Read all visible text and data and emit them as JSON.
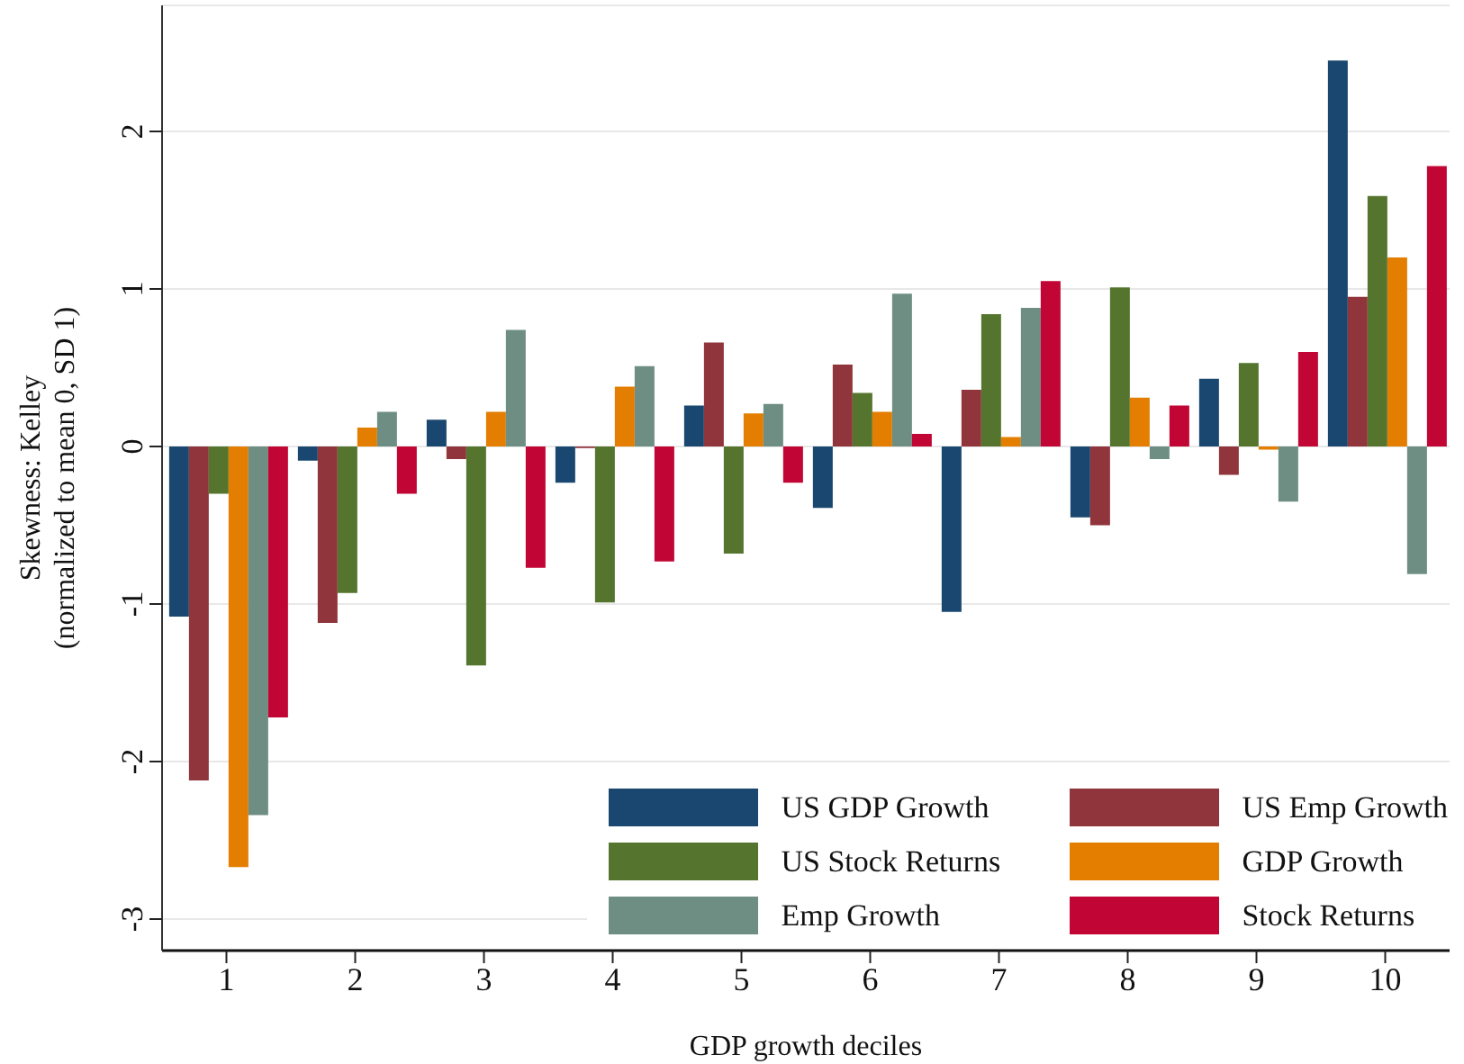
{
  "chart_data": {
    "type": "bar",
    "xlabel": "GDP growth deciles",
    "ylabel": "Skewness: Kelley\n(normalized to mean 0, SD 1)",
    "categories": [
      "1",
      "2",
      "3",
      "4",
      "5",
      "6",
      "7",
      "8",
      "9",
      "10"
    ],
    "series": [
      {
        "name": "US GDP Growth",
        "color": "#1a476f",
        "values": [
          -1.08,
          -0.09,
          0.17,
          -0.23,
          0.26,
          -0.39,
          -1.05,
          -0.45,
          0.43,
          2.45
        ]
      },
      {
        "name": "US Emp Growth",
        "color": "#90353b",
        "values": [
          -2.12,
          -1.12,
          -0.08,
          -0.01,
          0.66,
          0.52,
          0.36,
          -0.5,
          -0.18,
          0.95
        ]
      },
      {
        "name": "US Stock Returns",
        "color": "#55752f",
        "values": [
          -0.3,
          -0.93,
          -1.39,
          -0.99,
          -0.68,
          0.34,
          0.84,
          1.01,
          0.53,
          1.59
        ]
      },
      {
        "name": "GDP Growth",
        "color": "#e37e00",
        "values": [
          -2.67,
          0.12,
          0.22,
          0.38,
          0.21,
          0.22,
          0.06,
          0.31,
          -0.02,
          1.2
        ]
      },
      {
        "name": "Emp Growth",
        "color": "#6e8e84",
        "values": [
          -2.34,
          0.22,
          0.74,
          0.51,
          0.27,
          0.97,
          0.88,
          -0.08,
          -0.35,
          -0.81
        ]
      },
      {
        "name": "Stock Returns",
        "color": "#c10534",
        "values": [
          -1.72,
          -0.3,
          -0.77,
          -0.73,
          -0.23,
          0.08,
          1.05,
          0.26,
          0.6,
          1.78
        ]
      }
    ],
    "ylim": [
      -3.2,
      2.8
    ],
    "yticks": [
      -3,
      -2,
      -1,
      0,
      1,
      2
    ],
    "grid": "y",
    "legend": "bottom right"
  }
}
